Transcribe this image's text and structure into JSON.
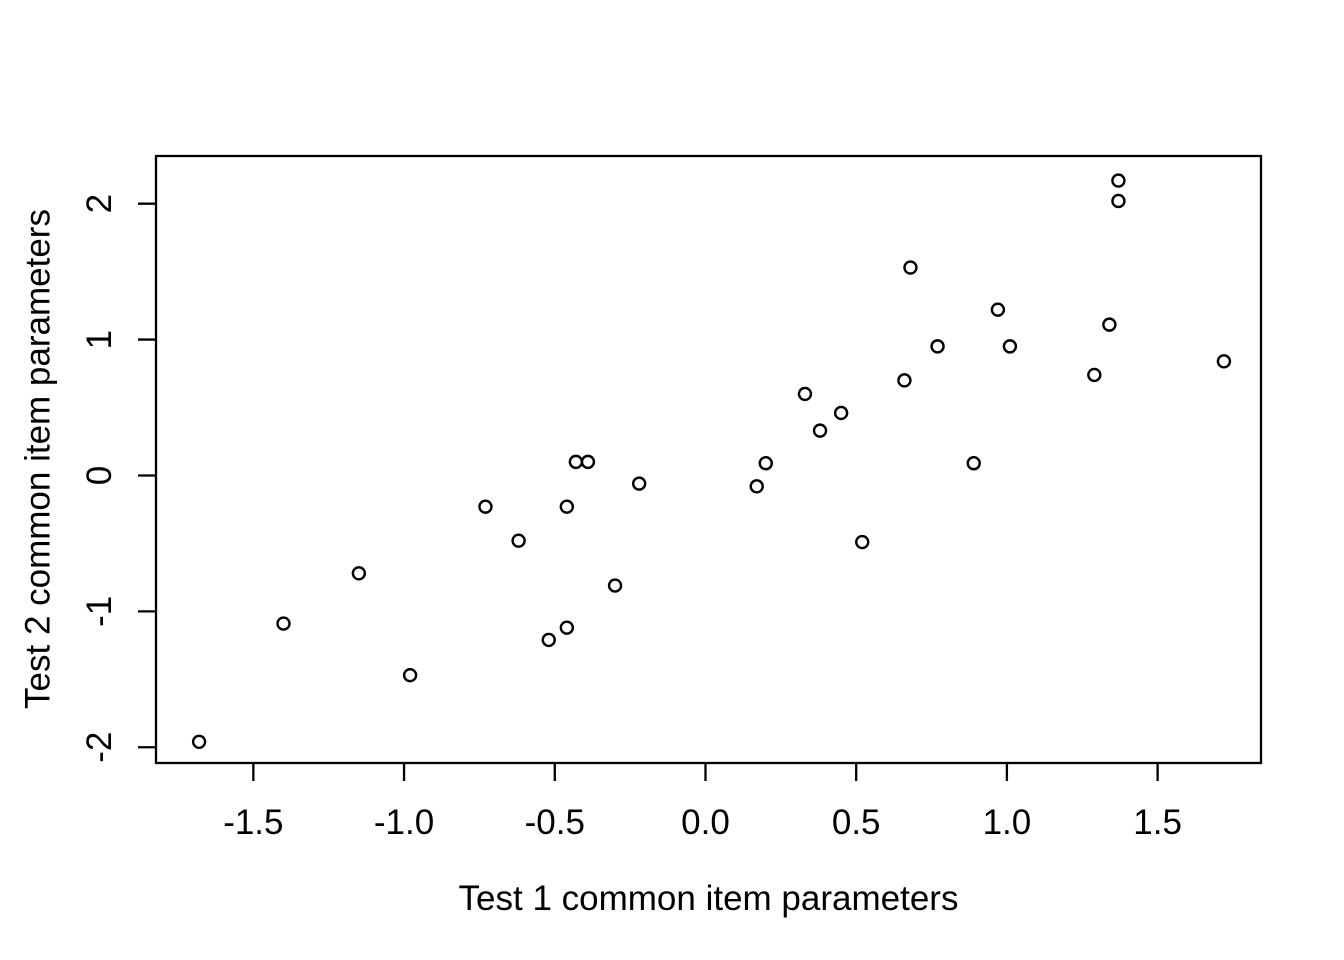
{
  "chart_data": {
    "type": "scatter",
    "title": "",
    "xlabel": "Test 1 common item parameters",
    "ylabel": "Test 2 common item parameters",
    "x_ticks": [
      -1.5,
      -1.0,
      -0.5,
      0.0,
      0.5,
      1.0,
      1.5
    ],
    "x_tick_labels": [
      "-1.5",
      "-1.0",
      "-0.5",
      "0.0",
      "0.5",
      "1.0",
      "1.5"
    ],
    "y_ticks": [
      -2,
      -1,
      0,
      1,
      2
    ],
    "y_tick_labels": [
      "-2",
      "-1",
      "0",
      "1",
      "2"
    ],
    "xlim": [
      -1.823,
      1.843
    ],
    "ylim": [
      -2.116,
      2.351
    ],
    "grid": false,
    "legend": null,
    "marker": "open-circle",
    "colors": {
      "points": "#000000",
      "axis": "#000000",
      "text": "#000000",
      "background": "#ffffff"
    },
    "points": [
      [
        -1.68,
        -1.96
      ],
      [
        -1.4,
        -1.09
      ],
      [
        -1.15,
        -0.72
      ],
      [
        -0.98,
        -1.47
      ],
      [
        -0.73,
        -0.23
      ],
      [
        -0.62,
        -0.48
      ],
      [
        -0.52,
        -1.21
      ],
      [
        -0.46,
        -1.12
      ],
      [
        -0.46,
        -0.23
      ],
      [
        -0.43,
        0.1
      ],
      [
        -0.39,
        0.1
      ],
      [
        -0.3,
        -0.81
      ],
      [
        -0.22,
        -0.06
      ],
      [
        0.17,
        -0.08
      ],
      [
        0.2,
        0.09
      ],
      [
        0.33,
        0.6
      ],
      [
        0.38,
        0.33
      ],
      [
        0.45,
        0.46
      ],
      [
        0.52,
        -0.49
      ],
      [
        0.66,
        0.7
      ],
      [
        0.68,
        1.53
      ],
      [
        0.77,
        0.95
      ],
      [
        0.89,
        0.09
      ],
      [
        0.97,
        1.22
      ],
      [
        1.01,
        0.95
      ],
      [
        1.29,
        0.74
      ],
      [
        1.34,
        1.11
      ],
      [
        1.37,
        2.02
      ],
      [
        1.37,
        2.17
      ],
      [
        1.72,
        0.84
      ]
    ]
  }
}
